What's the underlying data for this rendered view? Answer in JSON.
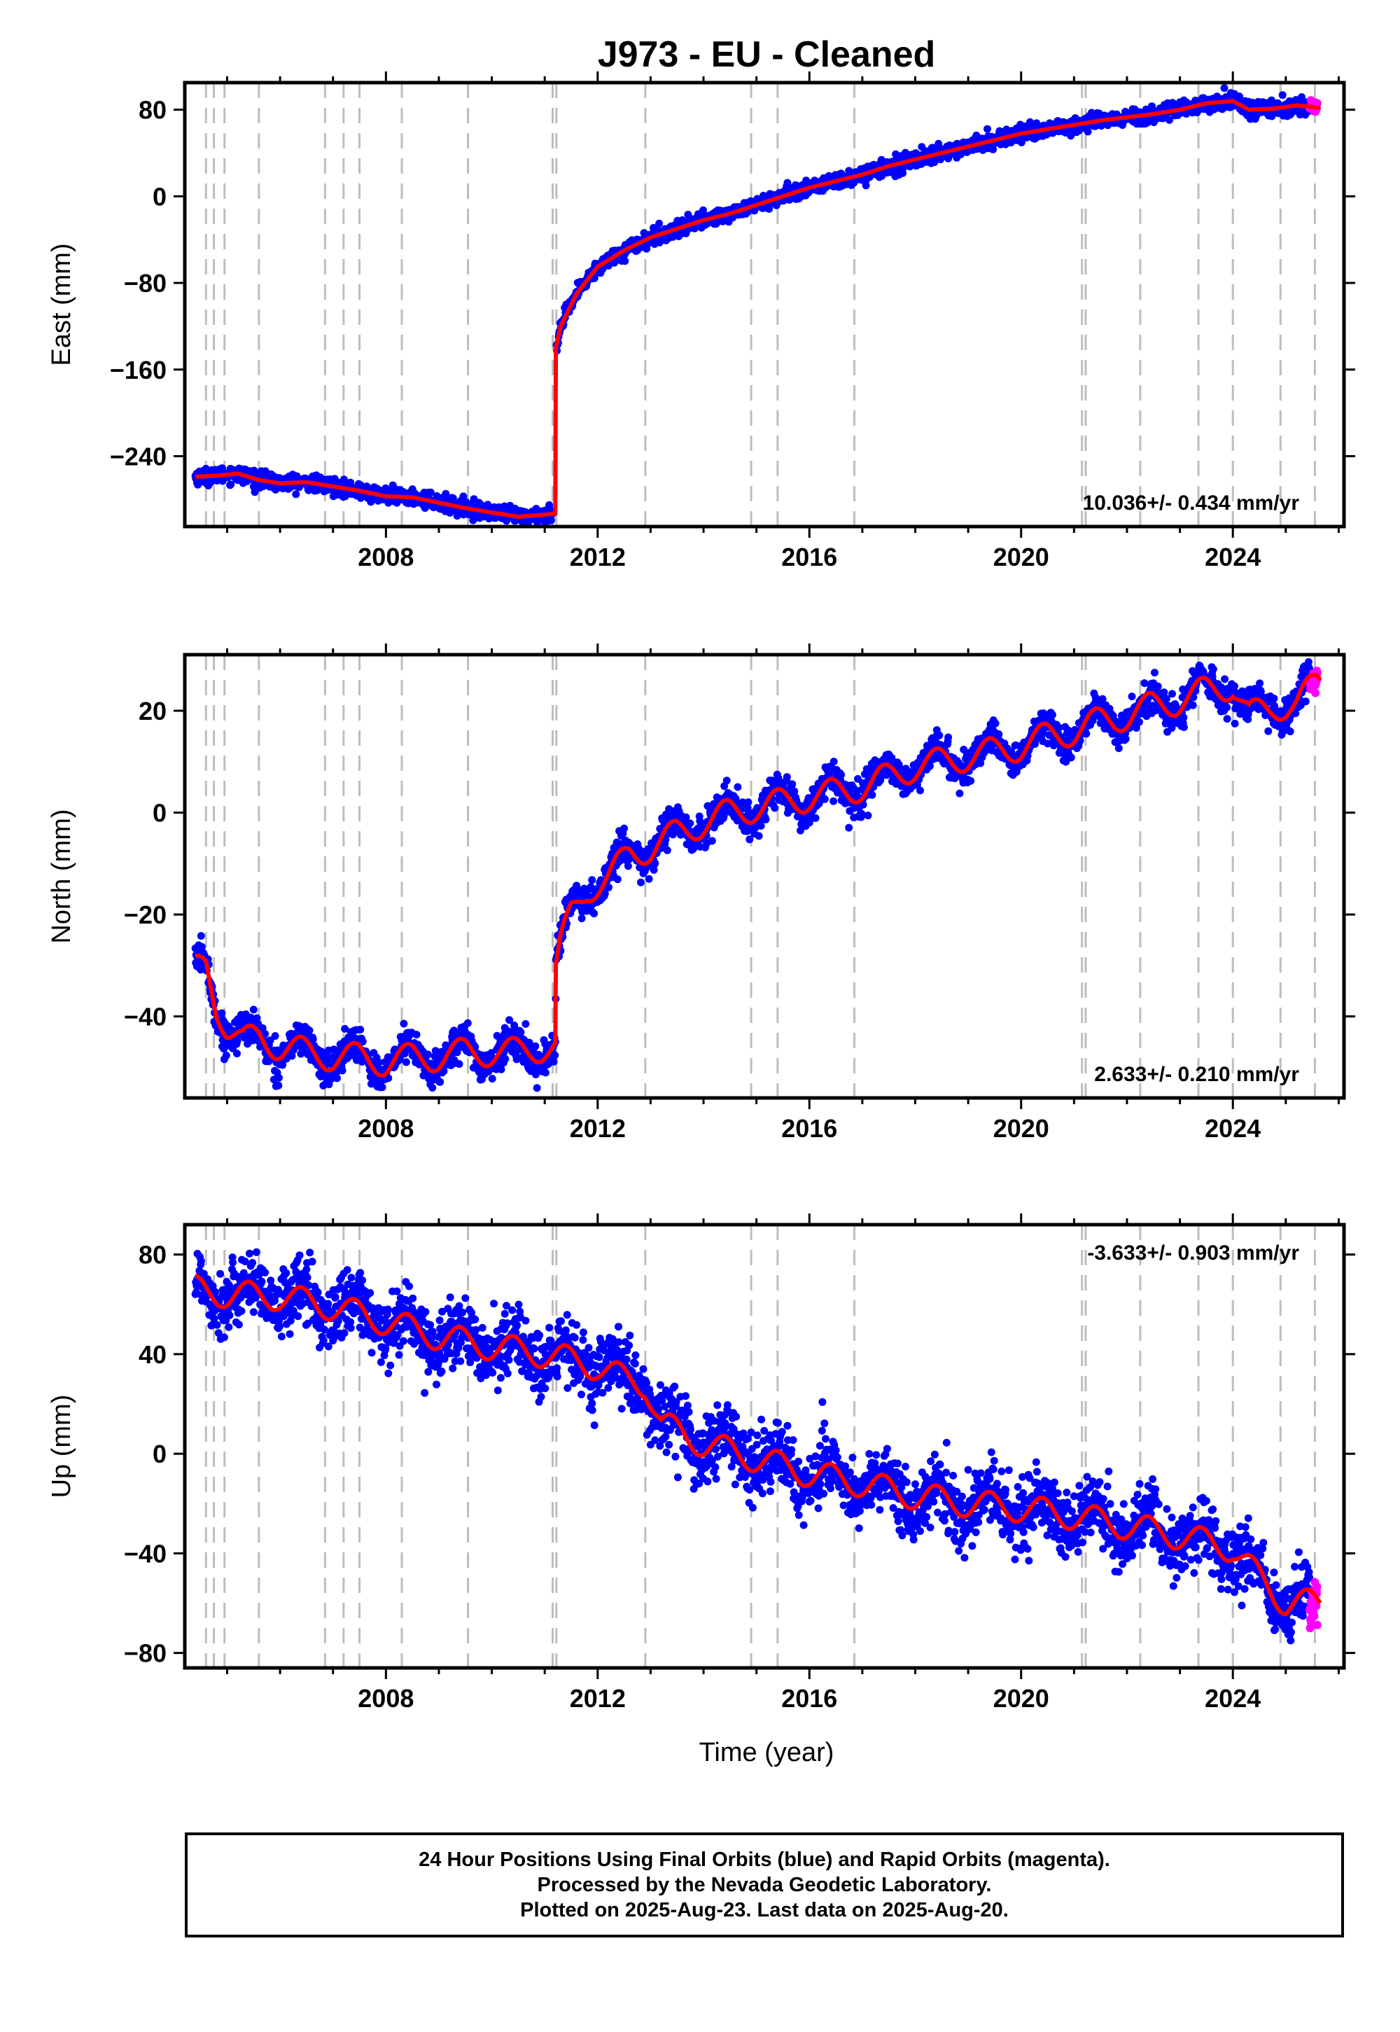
{
  "title": "J973  - EU - Cleaned",
  "xlabel": "Time (year)",
  "caption": {
    "line1": "24 Hour Positions Using Final Orbits (blue) and Rapid Orbits (magenta).",
    "line2": "Processed by the Nevada Geodetic Laboratory.",
    "line3": "Plotted on 2025-Aug-23. Last data on 2025-Aug-20."
  },
  "colors": {
    "final_orbits": "#0000ff",
    "rapid_orbits": "#ff00ff",
    "model_fit": "#ff0000",
    "event_lines": "#bdbdbd"
  },
  "chart_data": [
    {
      "type": "scatter",
      "panel": "east",
      "ylabel": "East (mm)",
      "xlim": [
        2004.2,
        2026.1
      ],
      "ylim": [
        -305,
        105
      ],
      "xticks": [
        2008,
        2012,
        2016,
        2020,
        2024
      ],
      "yticks": [
        80,
        0,
        -80,
        -160,
        -240
      ],
      "rate": "10.036+/- 0.434 mm/yr",
      "event_lines": [
        2004.6,
        2004.75,
        2004.95,
        2005.6,
        2006.85,
        2007.2,
        2007.5,
        2008.3,
        2009.55,
        2011.15,
        2011.22,
        2012.9,
        2014.9,
        2015.4,
        2016.85,
        2021.15,
        2021.22,
        2022.25,
        2023.35,
        2024.0,
        2024.9,
        2025.55
      ],
      "trend": {
        "x": [
          2004.4,
          2004.8,
          2005.2,
          2005.6,
          2006.0,
          2006.5,
          2007.0,
          2007.5,
          2008.0,
          2008.5,
          2009.0,
          2009.5,
          2010.0,
          2010.5,
          2011.0,
          2011.2,
          2011.21,
          2011.3,
          2011.6,
          2012.0,
          2012.5,
          2013.0,
          2013.5,
          2014.0,
          2014.5,
          2015.0,
          2015.5,
          2016.0,
          2016.5,
          2017.0,
          2017.5,
          2018.0,
          2018.5,
          2019.0,
          2019.5,
          2020.0,
          2020.5,
          2021.0,
          2021.5,
          2022.0,
          2022.5,
          2023.0,
          2023.5,
          2024.0,
          2024.3,
          2024.8,
          2025.2,
          2025.6
        ],
        "y": [
          -259,
          -258,
          -256,
          -262,
          -265,
          -264,
          -268,
          -272,
          -277,
          -278,
          -283,
          -288,
          -292,
          -296,
          -294,
          -293,
          -140,
          -120,
          -90,
          -65,
          -50,
          -38,
          -30,
          -22,
          -16,
          -8,
          0,
          8,
          14,
          20,
          28,
          34,
          40,
          46,
          52,
          58,
          62,
          66,
          70,
          73,
          76,
          80,
          86,
          88,
          80,
          81,
          84,
          82
        ]
      },
      "scatter_noise_mm": 3.5,
      "rapid_tail": {
        "x": [
          2025.45,
          2025.6
        ],
        "y": [
          82,
          84
        ]
      }
    },
    {
      "type": "scatter",
      "panel": "north",
      "ylabel": "North (mm)",
      "xlim": [
        2004.2,
        2026.1
      ],
      "ylim": [
        -56,
        31
      ],
      "xticks": [
        2008,
        2012,
        2016,
        2020,
        2024
      ],
      "yticks": [
        20,
        0,
        -20,
        -40
      ],
      "rate": "2.633+/- 0.210 mm/yr",
      "event_lines": [
        2004.6,
        2004.75,
        2004.95,
        2005.6,
        2006.85,
        2007.2,
        2007.5,
        2008.3,
        2009.55,
        2011.15,
        2011.22,
        2012.9,
        2014.9,
        2015.4,
        2016.85,
        2021.15,
        2021.22,
        2022.25,
        2023.35,
        2024.0,
        2024.9,
        2025.55
      ],
      "trend": {
        "x": [
          2004.4,
          2004.6,
          2004.8,
          2005.0,
          2005.3,
          2005.6,
          2006.0,
          2006.5,
          2007.0,
          2007.5,
          2008.0,
          2008.5,
          2009.0,
          2009.5,
          2010.0,
          2010.5,
          2011.0,
          2011.2,
          2011.21,
          2011.3,
          2011.5,
          2011.8,
          2012.2,
          2012.6,
          2013.0,
          2013.5,
          2014.0,
          2014.5,
          2015.0,
          2015.5,
          2016.0,
          2016.5,
          2017.0,
          2017.5,
          2018.0,
          2018.5,
          2019.0,
          2019.5,
          2020.0,
          2020.5,
          2021.0,
          2021.5,
          2022.0,
          2022.5,
          2023.0,
          2023.5,
          2024.0,
          2024.3,
          2024.8,
          2025.2,
          2025.6
        ],
        "y": [
          -31,
          -30,
          -38,
          -42,
          -45,
          -44,
          -46,
          -47,
          -48,
          -48,
          -49,
          -48,
          -48,
          -47,
          -47,
          -47,
          -46,
          -46,
          -31,
          -26,
          -20,
          -15,
          -13,
          -8,
          -7,
          -4,
          -2,
          0,
          1,
          2,
          3,
          4,
          5,
          7,
          9,
          10,
          11,
          12,
          13,
          15,
          16,
          18,
          19,
          21,
          22,
          24,
          25,
          19,
          21,
          21,
          26
        ]
      },
      "seasonal_amplitude_mm": 2.8,
      "scatter_noise_mm": 1.6,
      "rapid_tail": {
        "x": [
          2025.45,
          2025.6
        ],
        "y": [
          25,
          27
        ]
      }
    },
    {
      "type": "scatter",
      "panel": "up",
      "ylabel": "Up (mm)",
      "xlim": [
        2004.2,
        2026.1
      ],
      "ylim": [
        -86,
        92
      ],
      "xticks": [
        2008,
        2012,
        2016,
        2020,
        2024
      ],
      "yticks": [
        80,
        40,
        0,
        -40,
        -80
      ],
      "rate": "-3.633+/- 0.903 mm/yr",
      "event_lines": [
        2004.6,
        2004.75,
        2004.95,
        2005.6,
        2006.85,
        2007.2,
        2007.5,
        2008.3,
        2009.55,
        2011.15,
        2011.22,
        2012.9,
        2014.9,
        2015.4,
        2016.85,
        2021.15,
        2021.22,
        2022.25,
        2023.35,
        2024.0,
        2024.9,
        2025.55
      ],
      "trend": {
        "x": [
          2004.4,
          2005.0,
          2006.0,
          2007.0,
          2008.0,
          2009.0,
          2010.0,
          2011.0,
          2012.0,
          2012.5,
          2012.9,
          2013.2,
          2014.0,
          2015.0,
          2016.0,
          2017.0,
          2018.0,
          2019.0,
          2020.0,
          2021.0,
          2022.0,
          2023.0,
          2024.0,
          2024.5,
          2025.0,
          2025.6
        ],
        "y": [
          66,
          64,
          63,
          59,
          53,
          47,
          43,
          40,
          35,
          30,
          28,
          12,
          4,
          -2,
          -8,
          -12,
          -17,
          -20,
          -22,
          -25,
          -29,
          -33,
          -38,
          -50,
          -60,
          -60
        ]
      },
      "seasonal_amplitude_mm": 5.5,
      "scatter_noise_mm": 6.5,
      "rapid_tail": {
        "x": [
          2025.45,
          2025.6
        ],
        "y": [
          -62,
          -58
        ]
      }
    }
  ]
}
